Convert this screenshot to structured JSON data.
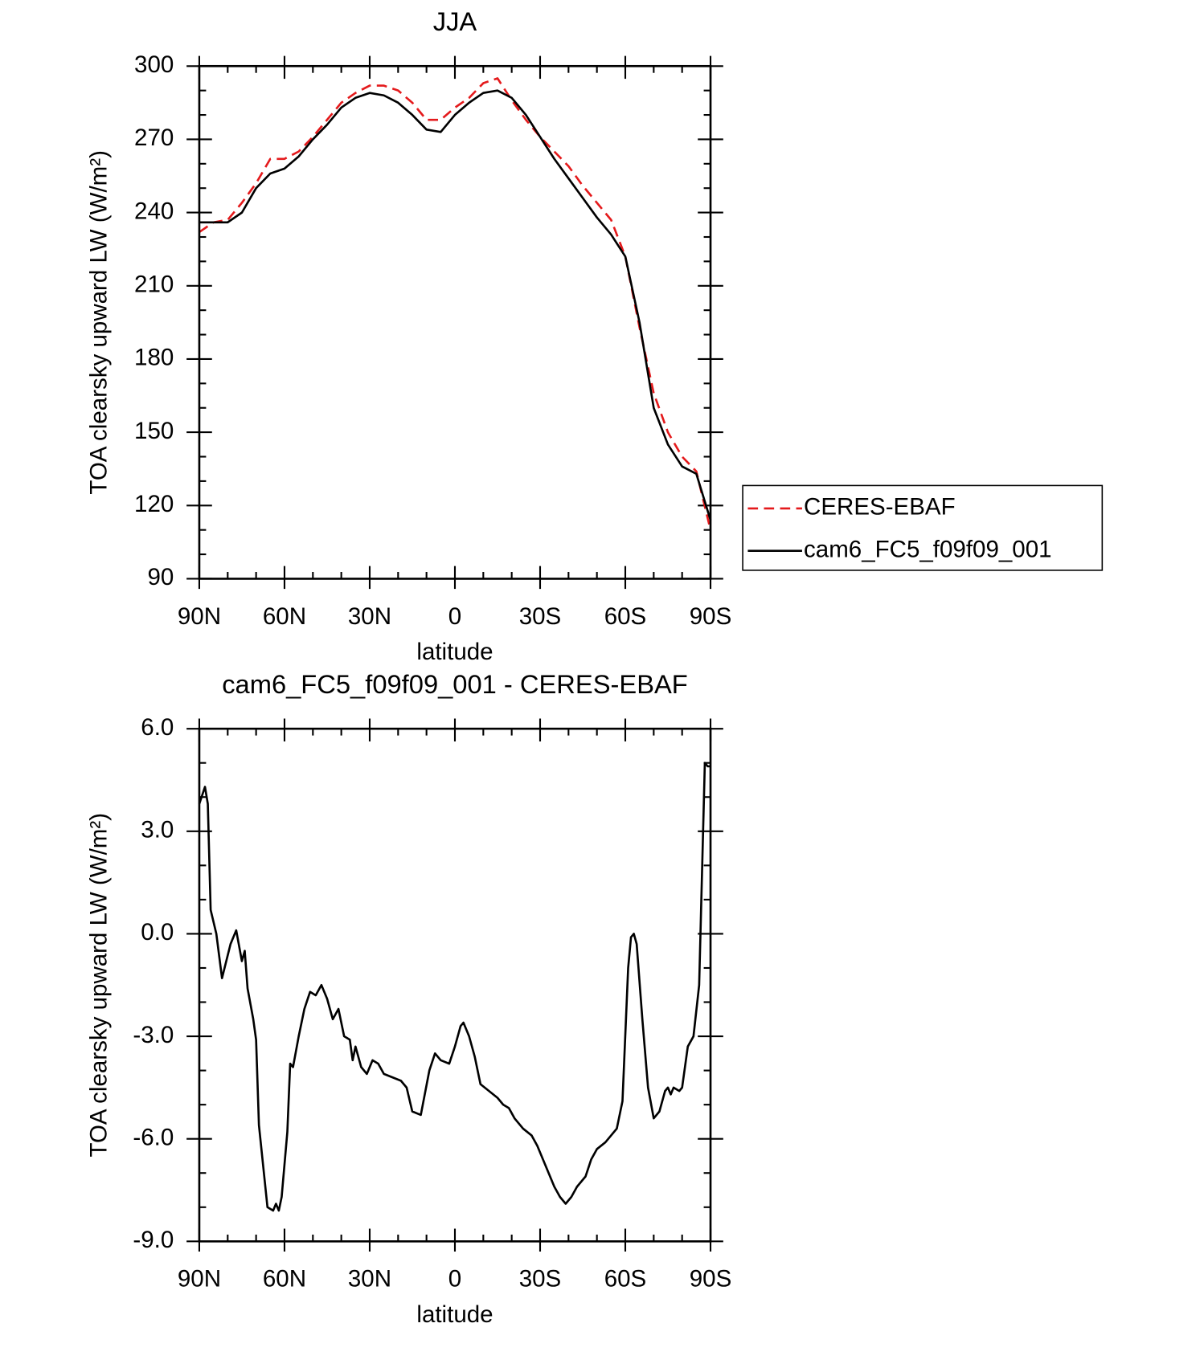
{
  "chart_data": [
    {
      "type": "line",
      "title": "JJA",
      "xlabel": "latitude",
      "ylabel": "TOA clearsky upward LW (W/m²)",
      "xlim": [
        90,
        -90
      ],
      "xticks": [
        {
          "value": 90,
          "label": "90N"
        },
        {
          "value": 60,
          "label": "60N"
        },
        {
          "value": 30,
          "label": "30N"
        },
        0,
        {
          "value": -30,
          "label": "30S"
        },
        {
          "value": -60,
          "label": "60S"
        },
        {
          "value": -90,
          "label": "90S"
        }
      ],
      "ylim": [
        90,
        300
      ],
      "yticks": [
        90,
        120,
        150,
        180,
        210,
        240,
        270,
        300
      ],
      "legend": "right",
      "x": [
        90,
        85,
        80,
        75,
        70,
        65,
        60,
        55,
        50,
        45,
        40,
        35,
        30,
        25,
        20,
        15,
        10,
        5,
        0,
        -5,
        -10,
        -15,
        -20,
        -25,
        -30,
        -35,
        -40,
        -45,
        -50,
        -55,
        -60,
        -65,
        -70,
        -75,
        -80,
        -85,
        -90
      ],
      "series": [
        {
          "name": "CERES-EBAF",
          "color": "#e41a1c",
          "dashed": true,
          "values": [
            232,
            236,
            237,
            244,
            252,
            262,
            262,
            265,
            271,
            278,
            285,
            289,
            292,
            292,
            290,
            285,
            278,
            278,
            283,
            287,
            293,
            295,
            286,
            278,
            271,
            265,
            259,
            251,
            244,
            237,
            222,
            193,
            166,
            150,
            140,
            134,
            110
          ]
        },
        {
          "name": "cam6_FC5_f09f09_001",
          "color": "#000000",
          "dashed": false,
          "values": [
            236,
            236,
            236,
            240,
            250,
            256,
            258,
            263,
            270,
            276,
            283,
            287,
            289,
            288,
            285,
            280,
            274,
            273,
            280,
            285,
            289,
            290,
            287,
            280,
            271,
            262,
            254,
            246,
            238,
            231,
            222,
            195,
            160,
            145,
            136,
            133,
            114
          ]
        }
      ]
    },
    {
      "type": "line",
      "title": "cam6_FC5_f09f09_001 - CERES-EBAF",
      "xlabel": "latitude",
      "ylabel": "TOA clearsky upward LW (W/m²)",
      "xlim": [
        90,
        -90
      ],
      "xticks": [
        {
          "value": 90,
          "label": "90N"
        },
        {
          "value": 60,
          "label": "60N"
        },
        {
          "value": 30,
          "label": "30N"
        },
        0,
        {
          "value": -30,
          "label": "30S"
        },
        {
          "value": -60,
          "label": "60S"
        },
        {
          "value": -90,
          "label": "90S"
        }
      ],
      "ylim": [
        -9,
        6
      ],
      "yticks": [
        {
          "value": -9,
          "label": "-9.0"
        },
        {
          "value": -6,
          "label": "-6.0"
        },
        {
          "value": -3,
          "label": "-3.0"
        },
        {
          "value": 0,
          "label": "0.0"
        },
        {
          "value": 3,
          "label": "3.0"
        },
        {
          "value": 6,
          "label": "6.0"
        }
      ],
      "x": [
        90,
        88,
        87,
        86,
        84,
        82,
        79,
        77,
        75,
        74,
        73,
        71,
        70,
        69,
        67,
        66,
        64,
        63,
        62,
        61,
        59,
        58,
        57,
        55,
        53,
        51,
        49,
        47,
        45,
        43,
        41,
        39,
        37,
        36,
        35,
        33,
        31,
        29,
        27,
        25,
        22,
        19,
        17,
        15,
        12,
        9,
        7,
        5,
        2,
        0,
        -2,
        -3,
        -5,
        -7,
        -9,
        -12,
        -15,
        -17,
        -19,
        -21,
        -24,
        -27,
        -29,
        -31,
        -33,
        -35,
        -37,
        -39,
        -41,
        -43,
        -46,
        -48,
        -50,
        -53,
        -55,
        -57,
        -59,
        -61,
        -62,
        -63,
        -64,
        -66,
        -68,
        -70,
        -72,
        -74,
        -75,
        -76,
        -77,
        -79,
        -80,
        -82,
        -84,
        -86,
        -88,
        -89,
        -90
      ],
      "series": [
        {
          "color": "#000000",
          "dashed": false,
          "values": [
            3.8,
            4.3,
            3.8,
            0.7,
            0,
            -1.3,
            -0.3,
            0.1,
            -0.8,
            -0.5,
            -1.6,
            -2.5,
            -3.1,
            -5.6,
            -7.2,
            -8.0,
            -8.1,
            -7.9,
            -8.1,
            -7.7,
            -5.8,
            -3.8,
            -3.9,
            -3.0,
            -2.2,
            -1.7,
            -1.8,
            -1.5,
            -1.9,
            -2.5,
            -2.2,
            -3.0,
            -3.1,
            -3.7,
            -3.3,
            -3.9,
            -4.1,
            -3.7,
            -3.8,
            -4.1,
            -4.2,
            -4.3,
            -4.5,
            -5.2,
            -5.3,
            -4.0,
            -3.5,
            -3.7,
            -3.8,
            -3.3,
            -2.7,
            -2.6,
            -3.0,
            -3.6,
            -4.4,
            -4.6,
            -4.8,
            -5.0,
            -5.1,
            -5.4,
            -5.7,
            -5.9,
            -6.2,
            -6.6,
            -7.0,
            -7.4,
            -7.7,
            -7.9,
            -7.7,
            -7.4,
            -7.1,
            -6.6,
            -6.3,
            -6.1,
            -5.9,
            -5.7,
            -4.9,
            -1.0,
            -0.1,
            0.0,
            -0.3,
            -2.5,
            -4.5,
            -5.4,
            -5.2,
            -4.6,
            -4.5,
            -4.7,
            -4.5,
            -4.6,
            -4.5,
            -3.3,
            -3.0,
            -1.5,
            5.0,
            4.9,
            4.9
          ]
        }
      ]
    }
  ]
}
